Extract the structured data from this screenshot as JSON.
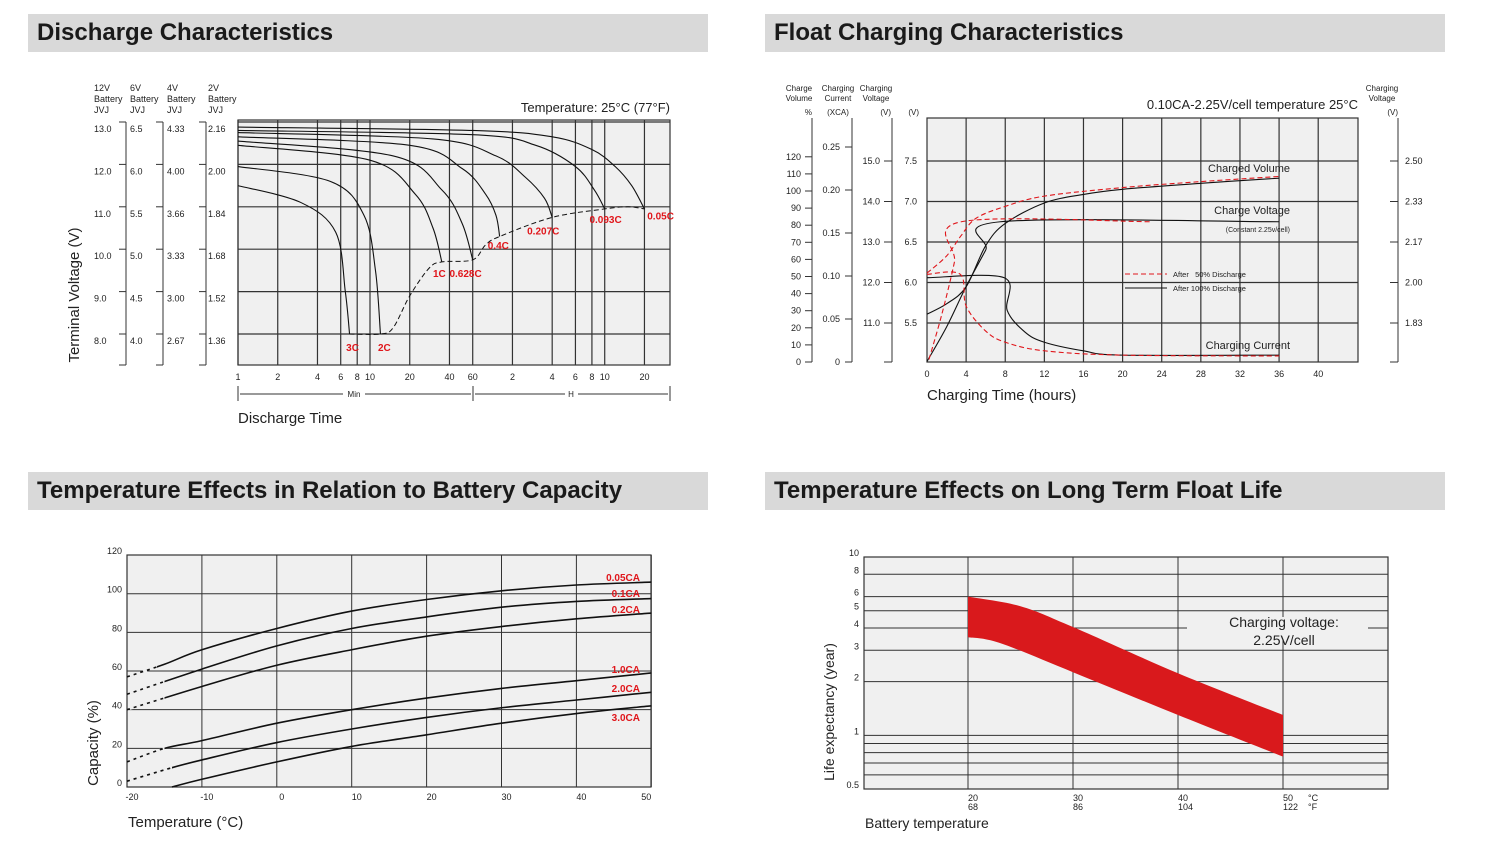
{
  "headers": {
    "discharge": "Discharge Characteristics",
    "float": "Float Charging Characteristics",
    "temp_capacity": "Temperature Effects in Relation to Battery Capacity",
    "float_life": "Temperature Effects on Long Term Float Life"
  },
  "colors": {
    "header_bg": "#d9d9d9",
    "plot_bg": "#f0f0f0",
    "grid": "#333333",
    "accent_red": "#e0161b",
    "band_red": "#d9191c"
  },
  "chart_data": [
    {
      "type": "line",
      "title": "Temperature: 25°C (77°F)",
      "xlabel": "Discharge Time",
      "ylabel": "Terminal Voltage (V)",
      "x_scale": "log",
      "x_unit_min": "Min",
      "x_unit_h": "H",
      "x_ticks_min": [
        1,
        2,
        4,
        6,
        8,
        10,
        20,
        40,
        60
      ],
      "x_ticks_h": [
        2,
        4,
        6,
        8,
        10,
        20
      ],
      "y_values_12v": [
        13.0,
        12.0,
        11.0,
        10.0,
        9.0,
        8.0
      ],
      "scales": [
        {
          "header": [
            "12V",
            "Battery",
            "JVJ"
          ],
          "ticks": [
            "13.0",
            "12.0",
            "11.0",
            "10.0",
            "9.0",
            "8.0"
          ]
        },
        {
          "header": [
            "6V",
            "Battery",
            "JVJ"
          ],
          "ticks": [
            "6.5",
            "6.0",
            "5.5",
            "5.0",
            "4.5",
            "4.0"
          ]
        },
        {
          "header": [
            "4V",
            "Battery",
            "JVJ"
          ],
          "ticks": [
            "4.33",
            "4.00",
            "3.66",
            "3.33",
            "3.00",
            "2.67"
          ]
        },
        {
          "header": [
            "2V",
            "Battery",
            "JVJ"
          ],
          "ticks": [
            "2.16",
            "2.00",
            "1.84",
            "1.68",
            "1.52",
            "1.36"
          ]
        }
      ],
      "x_unit": "minutes",
      "series": [
        {
          "name": "0.05C",
          "points": [
            [
              1,
              12.88
            ],
            [
              60,
              12.8
            ],
            [
              240,
              12.65
            ],
            [
              480,
              12.35
            ],
            [
              720,
              11.95
            ],
            [
              960,
              11.5
            ],
            [
              1200,
              10.95
            ]
          ],
          "label_at": [
            1260,
            10.7
          ]
        },
        {
          "name": "0.093C",
          "points": [
            [
              1,
              12.8
            ],
            [
              60,
              12.7
            ],
            [
              180,
              12.45
            ],
            [
              360,
              11.95
            ],
            [
              500,
              11.4
            ],
            [
              600,
              10.95
            ]
          ],
          "label_at": [
            460,
            10.62
          ]
        },
        {
          "name": "0.207C",
          "points": [
            [
              1,
              12.75
            ],
            [
              30,
              12.6
            ],
            [
              90,
              12.2
            ],
            [
              150,
              11.7
            ],
            [
              210,
              11.2
            ],
            [
              240,
              10.75
            ]
          ],
          "label_at": [
            155,
            10.35
          ]
        },
        {
          "name": "0.4C",
          "points": [
            [
              1,
              12.65
            ],
            [
              20,
              12.45
            ],
            [
              50,
              11.9
            ],
            [
              75,
              11.3
            ],
            [
              90,
              10.8
            ],
            [
              96,
              10.3
            ]
          ],
          "label_at": [
            78,
            10.0
          ]
        },
        {
          "name": "0.628C",
          "points": [
            [
              1,
              12.55
            ],
            [
              15,
              12.2
            ],
            [
              35,
              11.4
            ],
            [
              50,
              10.6
            ],
            [
              60,
              9.75
            ]
          ],
          "label_at": [
            40,
            9.35
          ]
        },
        {
          "name": "1C",
          "points": [
            [
              1,
              12.45
            ],
            [
              10,
              12.1
            ],
            [
              22,
              11.3
            ],
            [
              30,
              10.5
            ],
            [
              35,
              9.7
            ]
          ],
          "label_at": [
            30,
            9.35
          ]
        },
        {
          "name": "2C",
          "points": [
            [
              1,
              11.95
            ],
            [
              5,
              11.6
            ],
            [
              9,
              10.8
            ],
            [
              11,
              9.5
            ],
            [
              12,
              8.0
            ]
          ],
          "label_at": [
            11.5,
            7.6
          ]
        },
        {
          "name": "3C",
          "points": [
            [
              1,
              11.5
            ],
            [
              3,
              11.1
            ],
            [
              5.5,
              10.4
            ],
            [
              6.5,
              9.0
            ],
            [
              7,
              8.0
            ]
          ],
          "label_at": [
            6.6,
            7.6
          ]
        }
      ],
      "end_voltage_line": [
        [
          7,
          8.0
        ],
        [
          12,
          8.0
        ],
        [
          15,
          8.15
        ],
        [
          20,
          8.9
        ],
        [
          28,
          9.55
        ],
        [
          35,
          9.7
        ],
        [
          60,
          9.75
        ],
        [
          75,
          10.1
        ],
        [
          96,
          10.3
        ],
        [
          240,
          10.75
        ],
        [
          600,
          10.95
        ],
        [
          900,
          11.0
        ],
        [
          1200,
          10.95
        ]
      ]
    },
    {
      "type": "line",
      "title": "0.10CA-2.25V/cell  temperature 25°C",
      "xlabel": "Charging Time (hours)",
      "x_ticks": [
        0,
        4,
        8,
        12,
        16,
        20,
        24,
        28,
        32,
        36,
        40
      ],
      "axes": {
        "volume": {
          "header": [
            "Charge",
            "Volume",
            "%"
          ],
          "ticks": [
            120,
            110,
            100,
            90,
            80,
            70,
            60,
            50,
            40,
            30,
            20,
            10,
            0
          ]
        },
        "current": {
          "header": [
            "Charging",
            "Current",
            "(XCA)"
          ],
          "ticks": [
            "0.25",
            "0.20",
            "0.15",
            "0.10",
            "0.05",
            "0"
          ]
        },
        "voltage_12v": {
          "header": [
            "Charging",
            "Voltage",
            "(V)"
          ],
          "ticks": [
            "15.0",
            "14.0",
            "13.0",
            "12.0",
            "11.0"
          ]
        },
        "voltage_6v": {
          "header": "(V)",
          "ticks": [
            "7.5",
            "7.0",
            "6.5",
            "6.0",
            "5.5"
          ]
        },
        "voltage_2v": {
          "header": [
            "Charging",
            "Voltage",
            "(V)"
          ],
          "ticks": [
            "2.50",
            "2.33",
            "2.17",
            "2.00",
            "1.83"
          ]
        }
      },
      "labels": {
        "charged_volume": "Charged Volume",
        "charge_voltage": "Charge Voltage",
        "constant": "(Constant 2.25v/cell)",
        "charging_current": "Charging Current"
      },
      "legend": {
        "dashed": "After   50% Discharge",
        "solid": "After 100% Discharge",
        "placement": "center-right"
      },
      "series": [
        {
          "name": "Charged Volume",
          "case": "After 100% Discharge",
          "unit": "%",
          "points": [
            [
              0,
              28
            ],
            [
              2,
              34
            ],
            [
              4,
              44
            ],
            [
              6,
              68
            ],
            [
              8,
              81
            ],
            [
              12,
              93
            ],
            [
              16,
              98
            ],
            [
              20,
              101
            ],
            [
              28,
              104.5
            ],
            [
              36,
              107.5
            ]
          ]
        },
        {
          "name": "Charged Volume",
          "case": "After 50% Discharge",
          "unit": "%",
          "points": [
            [
              0,
              52
            ],
            [
              2,
              62
            ],
            [
              3.5,
              74
            ],
            [
              5,
              84
            ],
            [
              8,
              91
            ],
            [
              12,
              97
            ],
            [
              20,
              102
            ],
            [
              28,
              105.5
            ],
            [
              36,
              108.5
            ]
          ]
        },
        {
          "name": "Charge Voltage",
          "case": "After 100% Discharge",
          "unit": "V",
          "points": [
            [
              0,
              10.05
            ],
            [
              2,
              10.9
            ],
            [
              4,
              11.9
            ],
            [
              6,
              12.8
            ],
            [
              7.5,
              13.5
            ],
            [
              36,
              13.5
            ]
          ]
        },
        {
          "name": "Charge Voltage",
          "case": "After 50% Discharge",
          "unit": "V",
          "points": [
            [
              0.2,
              10.1
            ],
            [
              1.5,
              11.2
            ],
            [
              2.8,
              12.5
            ],
            [
              3.5,
              13.5
            ],
            [
              23,
              13.5
            ]
          ]
        },
        {
          "name": "Charging Current",
          "case": "After 100% Discharge",
          "unit": "CA",
          "points": [
            [
              0,
              0.098
            ],
            [
              7.9,
              0.098
            ],
            [
              8.2,
              0.06
            ],
            [
              10,
              0.035
            ],
            [
              12,
              0.023
            ],
            [
              16,
              0.013
            ],
            [
              20,
              0.008
            ],
            [
              36,
              0.008
            ]
          ]
        },
        {
          "name": "Charging Current",
          "case": "After 50% Discharge",
          "unit": "CA",
          "points": [
            [
              0,
              0.102
            ],
            [
              3.4,
              0.102
            ],
            [
              4,
              0.065
            ],
            [
              6,
              0.036
            ],
            [
              8,
              0.023
            ],
            [
              12,
              0.013
            ],
            [
              20,
              0.008
            ],
            [
              36,
              0.007
            ]
          ]
        }
      ]
    },
    {
      "type": "line",
      "xlabel": "Temperature (°C)",
      "ylabel": "Capacity (%)",
      "xlim": [
        -20,
        50
      ],
      "ylim": [
        0,
        120
      ],
      "x_ticks": [
        -20,
        -10,
        0,
        10,
        20,
        30,
        40,
        50
      ],
      "y_ticks": [
        120,
        100,
        80,
        60,
        40,
        20,
        0
      ],
      "series": [
        {
          "name": "0.05CA",
          "dashed_until": -16,
          "points": [
            [
              -20,
              57
            ],
            [
              -15,
              63.5
            ],
            [
              -10,
              71
            ],
            [
              0,
              82
            ],
            [
              10,
              91
            ],
            [
              20,
              97
            ],
            [
              30,
              101.5
            ],
            [
              40,
              104.5
            ],
            [
              50,
              106
            ]
          ]
        },
        {
          "name": "0.1CA",
          "dashed_until": -15,
          "points": [
            [
              -20,
              48
            ],
            [
              -10,
              61
            ],
            [
              0,
              73
            ],
            [
              10,
              82
            ],
            [
              20,
              88
            ],
            [
              30,
              93
            ],
            [
              40,
              96
            ],
            [
              50,
              97.5
            ]
          ]
        },
        {
          "name": "0.2CA",
          "dashed_until": -15,
          "points": [
            [
              -20,
              40
            ],
            [
              -10,
              52
            ],
            [
              0,
              63
            ],
            [
              10,
              71
            ],
            [
              20,
              78
            ],
            [
              30,
              83
            ],
            [
              40,
              87
            ],
            [
              50,
              90
            ]
          ]
        },
        {
          "name": "1.0CA",
          "dashed_until": -15,
          "points": [
            [
              -20,
              13
            ],
            [
              -15,
              20
            ],
            [
              -10,
              24
            ],
            [
              0,
              33
            ],
            [
              10,
              40
            ],
            [
              20,
              46
            ],
            [
              30,
              51
            ],
            [
              40,
              55
            ],
            [
              50,
              59
            ]
          ]
        },
        {
          "name": "2.0CA",
          "dashed_until": -14,
          "points": [
            [
              -20,
              3
            ],
            [
              -14,
              10
            ],
            [
              -10,
              14
            ],
            [
              0,
              23
            ],
            [
              10,
              30
            ],
            [
              20,
              36
            ],
            [
              30,
              41
            ],
            [
              40,
              45
            ],
            [
              50,
              49
            ]
          ]
        },
        {
          "name": "3.0CA",
          "dashed_until": null,
          "points": [
            [
              -14,
              0
            ],
            [
              -10,
              4
            ],
            [
              0,
              13
            ],
            [
              10,
              21
            ],
            [
              20,
              27
            ],
            [
              30,
              33
            ],
            [
              40,
              38
            ],
            [
              50,
              42
            ]
          ]
        }
      ]
    },
    {
      "type": "area",
      "xlabel": "Battery temperature",
      "ylabel": "Life expectancy (year)",
      "y_scale": "log",
      "ylim": [
        0.5,
        10
      ],
      "y_ticks": [
        "10",
        "8",
        "6",
        "5",
        "4",
        "3",
        "2",
        "1",
        "0.5"
      ],
      "y_gridlines": [
        8,
        6,
        5,
        4,
        3,
        2,
        1,
        0.9,
        0.8,
        0.7,
        0.6
      ],
      "x_ticks": [
        {
          "c": "20",
          "f": "68"
        },
        {
          "c": "30",
          "f": "86"
        },
        {
          "c": "40",
          "f": "104"
        },
        {
          "c": "50",
          "f": "122"
        }
      ],
      "x_units": {
        "c": "°C",
        "f": "°F"
      },
      "annotation": [
        "Charging voltage:",
        "2.25V/cell"
      ],
      "band_upper": [
        [
          20,
          6.0
        ],
        [
          25,
          5.3
        ],
        [
          30,
          4.05
        ],
        [
          40,
          2.23
        ],
        [
          50,
          1.3
        ]
      ],
      "band_lower": [
        [
          20,
          3.55
        ],
        [
          23,
          3.3
        ],
        [
          30,
          2.26
        ],
        [
          40,
          1.3
        ],
        [
          50,
          0.76
        ]
      ]
    }
  ]
}
